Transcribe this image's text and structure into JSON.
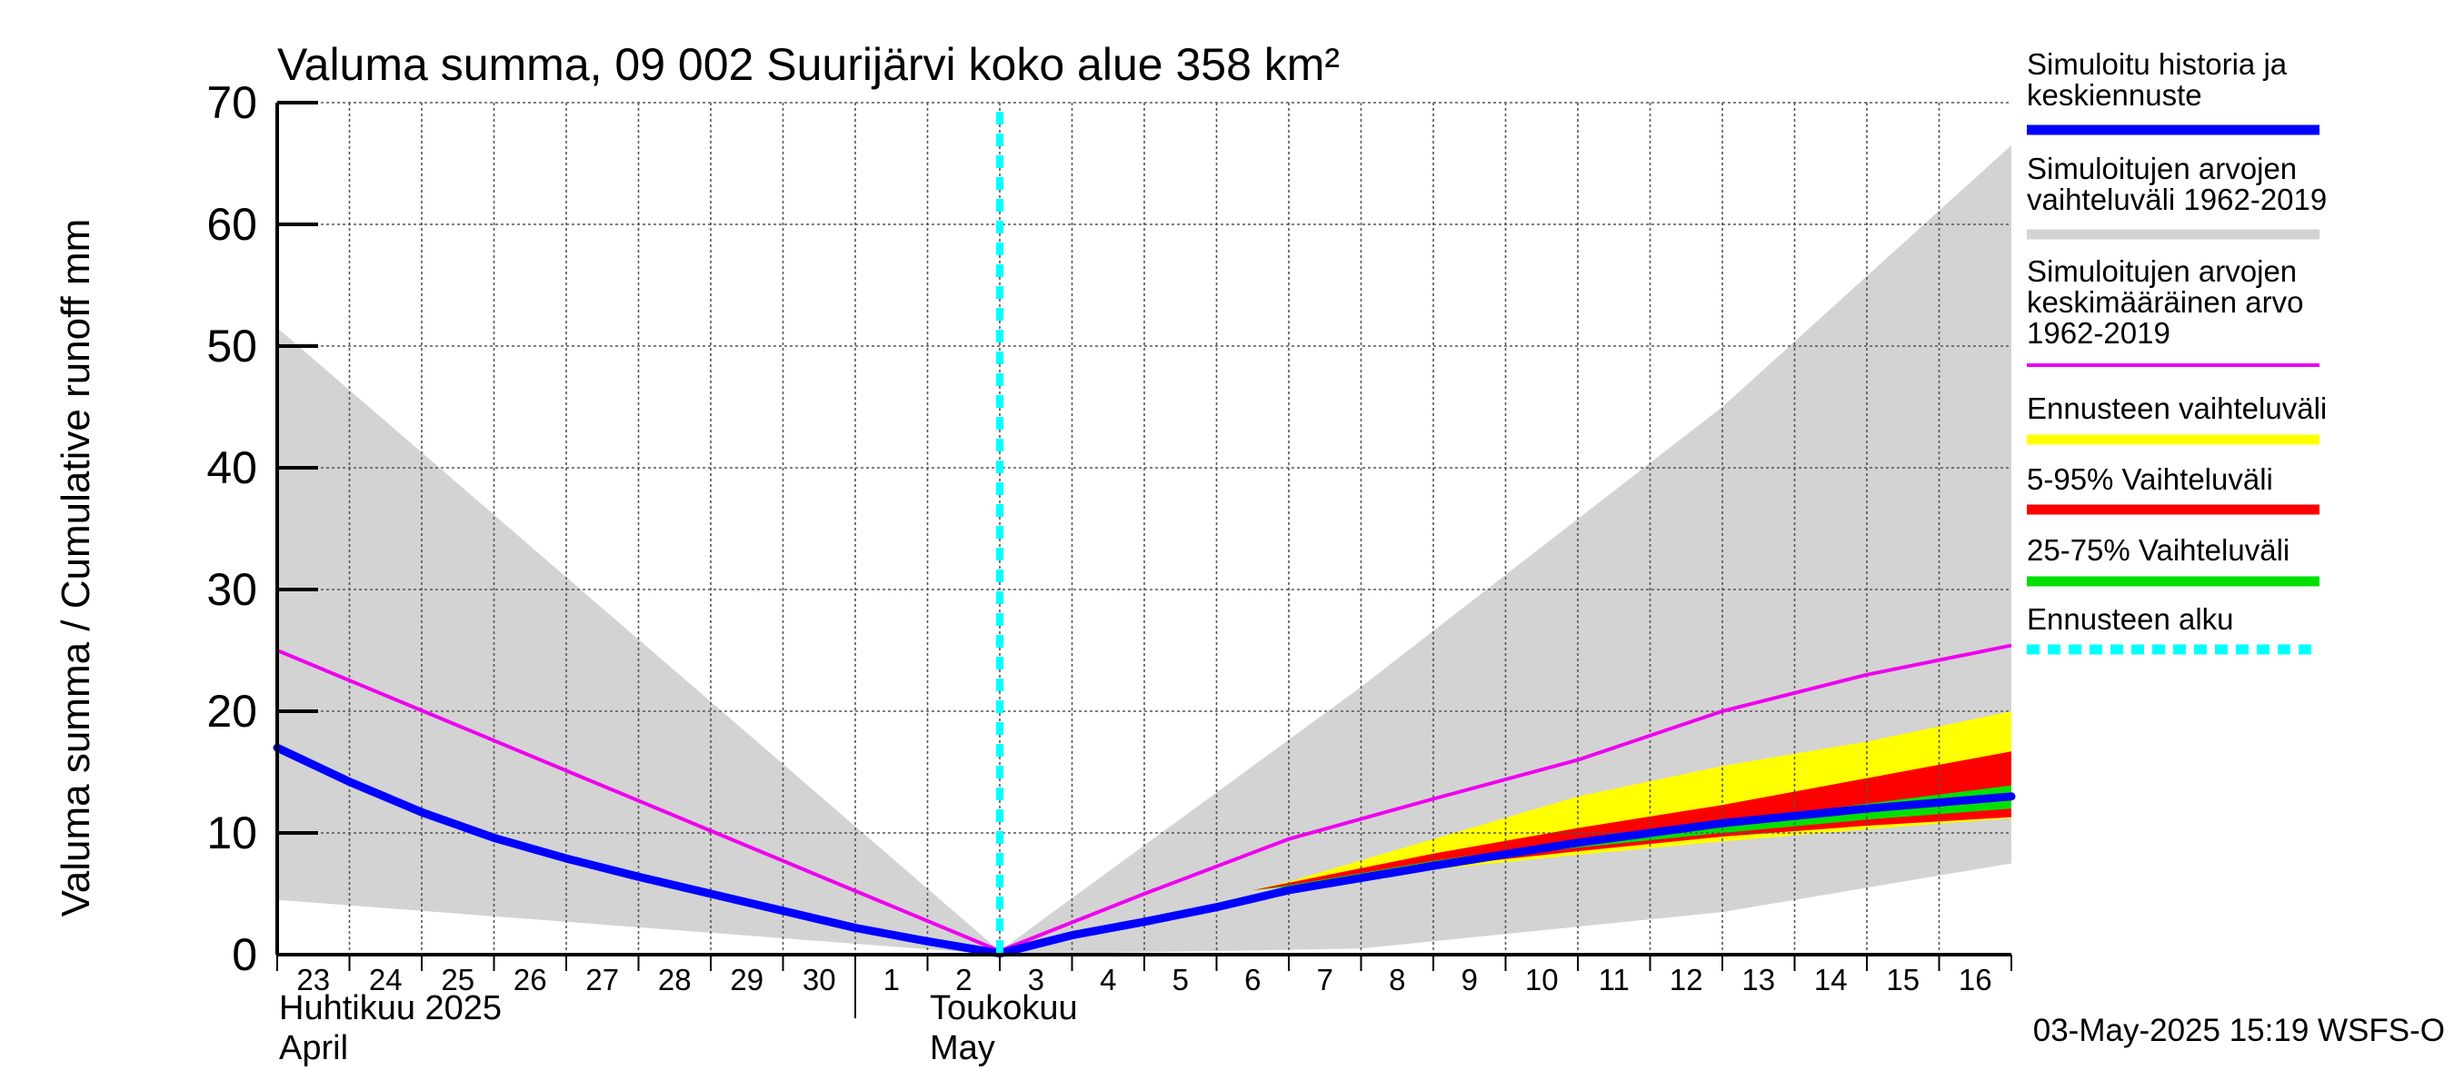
{
  "chart_data": {
    "type": "area",
    "title": "Valuma summa, 09 002 Suurijärvi koko alue 358 km²",
    "ylabel": "Valuma summa / Cumulative runoff    mm",
    "ylim": [
      0,
      70
    ],
    "yticks": [
      "0",
      "10",
      "20",
      "30",
      "40",
      "50",
      "60",
      "70"
    ],
    "x_days": [
      "23",
      "24",
      "25",
      "26",
      "27",
      "28",
      "29",
      "30",
      "1",
      "2",
      "3",
      "4",
      "5",
      "6",
      "7",
      "8",
      "9",
      "10",
      "11",
      "12",
      "13",
      "14",
      "15",
      "16"
    ],
    "month_labels": {
      "april_fi": "Huhtikuu  2025",
      "april_en": "April",
      "may_fi": "Toukokuu",
      "may_en": "May"
    },
    "forecast_start_x": 10.0,
    "series": [
      {
        "name": "Simuloitujen arvojen vaihteluväli 1962-2019",
        "kind": "band",
        "color": "#d3d3d3",
        "x": [
          0,
          10,
          15,
          20,
          24
        ],
        "upper": [
          51.5,
          0.3,
          22,
          45,
          66.5
        ],
        "lower": [
          4.5,
          0.0,
          0.5,
          3.5,
          7.5
        ]
      },
      {
        "name": "Ennusteen vaihteluväli",
        "kind": "band",
        "color": "#ffff00",
        "x": [
          13.5,
          14,
          16,
          18,
          20,
          22,
          24
        ],
        "upper": [
          5.3,
          6.0,
          9.5,
          13.0,
          15.5,
          17.5,
          20
        ],
        "lower": [
          5.3,
          5.6,
          7.0,
          8.2,
          9.3,
          10.3,
          11.2
        ]
      },
      {
        "name": "5-95% Vaihteluväli",
        "kind": "band",
        "color": "#ff0000",
        "x": [
          13.5,
          14,
          16,
          18,
          20,
          22,
          24
        ],
        "upper": [
          5.3,
          5.9,
          8.3,
          10.4,
          12.3,
          14.5,
          16.7
        ],
        "lower": [
          5.3,
          5.6,
          7.2,
          8.5,
          9.7,
          10.6,
          11.3
        ]
      },
      {
        "name": "25-75% Vaihteluväli",
        "kind": "band",
        "color": "#00e000",
        "x": [
          13.5,
          14,
          16,
          18,
          20,
          22,
          24
        ],
        "upper": [
          5.3,
          5.7,
          7.7,
          9.4,
          10.9,
          12.4,
          13.9
        ],
        "lower": [
          5.3,
          5.6,
          7.3,
          8.8,
          10.0,
          11.1,
          12.0
        ]
      },
      {
        "name": "Simuloitujen arvojen keskimääräinen arvo 1962-2019",
        "kind": "line",
        "color": "#ee00ee",
        "x": [
          0,
          10,
          12,
          14,
          16,
          18,
          20,
          22,
          24
        ],
        "y": [
          25,
          0.3,
          5.0,
          9.5,
          12.8,
          16.0,
          20.0,
          23.0,
          25.4
        ]
      },
      {
        "name": "Simuloitu historia ja keskiennuste",
        "kind": "line",
        "color": "#0000ff",
        "x": [
          0,
          1,
          2,
          3,
          4,
          5,
          6,
          7,
          8,
          9,
          10,
          11,
          12,
          13,
          14,
          16,
          18,
          20,
          22,
          24
        ],
        "y": [
          17.0,
          14.2,
          11.7,
          9.6,
          7.9,
          6.4,
          5.0,
          3.6,
          2.2,
          1.1,
          0.1,
          1.6,
          2.7,
          3.9,
          5.3,
          7.3,
          9.2,
          10.8,
          12.0,
          13.0
        ]
      }
    ],
    "legend": [
      {
        "label": "Simuloitu historia ja keskiennuste",
        "color": "#0000ff",
        "style": "solid"
      },
      {
        "label": "Simuloitujen arvojen vaihteluväli 1962-2019",
        "color": "#d3d3d3",
        "style": "solid"
      },
      {
        "label": "Simuloitujen arvojen keskimääräinen arvo 1962-2019",
        "color": "#ee00ee",
        "style": "thin"
      },
      {
        "label": "Ennusteen vaihteluväli",
        "color": "#ffff00",
        "style": "solid"
      },
      {
        "label": "5-95% Vaihteluväli",
        "color": "#ff0000",
        "style": "solid"
      },
      {
        "label": "25-75% Vaihteluväli",
        "color": "#00e000",
        "style": "solid"
      },
      {
        "label": "Ennusteen alku",
        "color": "#00ffff",
        "style": "dashed"
      }
    ],
    "legend_lines": [
      [
        "Simuloitu historia ja",
        "keskiennuste"
      ],
      [
        "Simuloitujen arvojen",
        "vaihteluväli 1962-2019"
      ],
      [
        "Simuloitujen arvojen",
        "keskimääräinen arvo",
        "   1962-2019"
      ],
      [
        "Ennusteen vaihteluväli"
      ],
      [
        "5-95% Vaihteluväli"
      ],
      [
        "25-75% Vaihteluväli"
      ],
      [
        "Ennusteen alku"
      ]
    ],
    "timestamp": "03-May-2025 15:19 WSFS-O"
  }
}
